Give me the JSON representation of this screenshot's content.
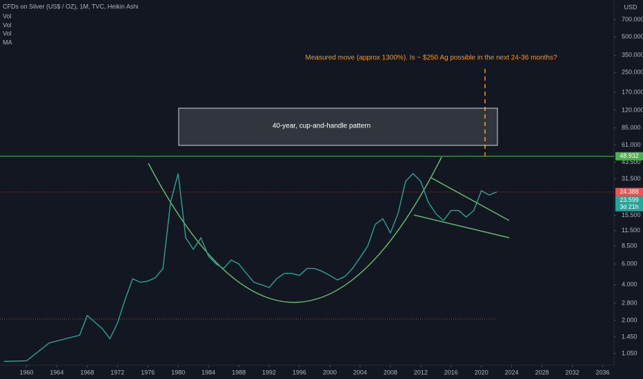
{
  "chart_data": {
    "type": "line",
    "title": "CFDs on Silver (US$ / OZ), 1M, TVC, Heikin Ashi",
    "legend": [
      "Vol",
      "Vol",
      "Vol",
      "MA"
    ],
    "axis_unit": "USD",
    "annotations": {
      "measured": "Measured move (approx 1300%). Is ~ $250 Ag possible in the next 24-36 months?",
      "pattern": "40-year, cup-and-handle pattern"
    },
    "log_scale": true,
    "grid": false,
    "color": "#26a69a",
    "x": [
      1957,
      1960,
      1963,
      1967,
      1968,
      1970,
      1971,
      1972,
      1973,
      1974,
      1975,
      1976,
      1977,
      1978,
      1979,
      1980,
      1981,
      1982,
      1983,
      1984,
      1985,
      1986,
      1987,
      1988,
      1989,
      1990,
      1991,
      1992,
      1993,
      1994,
      1995,
      1996,
      1997,
      1998,
      1999,
      2000,
      2001,
      2002,
      2003,
      2004,
      2005,
      2006,
      2007,
      2008,
      2009,
      2010,
      2011,
      2012,
      2013,
      2014,
      2015,
      2016,
      2017,
      2018,
      2019,
      2020,
      2021,
      2022
    ],
    "values": [
      0.9,
      0.91,
      1.29,
      1.5,
      2.2,
      1.7,
      1.4,
      1.9,
      3.0,
      4.5,
      4.2,
      4.3,
      4.6,
      5.5,
      20,
      35,
      10,
      8,
      10,
      7,
      6,
      5.5,
      6.5,
      6,
      5,
      4.2,
      4,
      3.8,
      4.5,
      5,
      5,
      4.8,
      5.5,
      5.5,
      5.2,
      4.8,
      4.4,
      4.7,
      5.5,
      6.8,
      8.5,
      13,
      14.5,
      11,
      16,
      30,
      35,
      30,
      20,
      16,
      14,
      17,
      17,
      15,
      17,
      25,
      23,
      24.388
    ],
    "xlim": [
      1956.5,
      2037.5
    ],
    "ylim": [
      0.835,
      1028
    ],
    "xticks": [
      1960,
      1964,
      1968,
      1972,
      1976,
      1980,
      1984,
      1988,
      1992,
      1996,
      2000,
      2004,
      2008,
      2012,
      2016,
      2020,
      2024,
      2028,
      2032,
      2036
    ],
    "yticks": [
      {
        "value": 1.05,
        "label": "1.050"
      },
      {
        "value": 1.45,
        "label": "1.450"
      },
      {
        "value": 2,
        "label": "2.000"
      },
      {
        "value": 2.8,
        "label": "2.800"
      },
      {
        "value": 4,
        "label": "4.000"
      },
      {
        "value": 6,
        "label": "6.000"
      },
      {
        "value": 8.5,
        "label": "8.500"
      },
      {
        "value": 11.5,
        "label": "11.500"
      },
      {
        "value": 15.5,
        "label": "15.500"
      },
      {
        "value": 31.5,
        "label": "31.500"
      },
      {
        "value": 43.5,
        "label": "43.500"
      },
      {
        "value": 61,
        "label": "61.000"
      },
      {
        "value": 85,
        "label": "85.000"
      },
      {
        "value": 120,
        "label": "120.000"
      },
      {
        "value": 170,
        "label": "170.000"
      },
      {
        "value": 250,
        "label": "250.000"
      },
      {
        "value": 350,
        "label": "350.000"
      },
      {
        "value": 500,
        "label": "500.000"
      },
      {
        "value": 700,
        "label": "700.000"
      }
    ],
    "hline": 48.932,
    "hline_color": "#4caf50",
    "last_price": 24.388,
    "close_price": 23.599,
    "countdown": "3d 21h"
  }
}
